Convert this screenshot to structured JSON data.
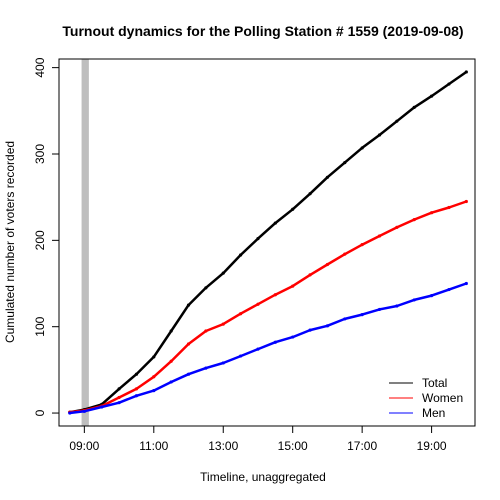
{
  "chart_data": {
    "type": "line",
    "title": "Turnout dynamics for the Polling Station # 1559 (2019-09-08)",
    "xlabel": "Timeline, unaggregated",
    "ylabel": "Cumulated number of voters recorded",
    "xlim": [
      8.27,
      20.25
    ],
    "ylim": [
      -15,
      410
    ],
    "x_ticks": [
      {
        "value": 9,
        "label": "09:00"
      },
      {
        "value": 11,
        "label": "11:00"
      },
      {
        "value": 13,
        "label": "13:00"
      },
      {
        "value": 15,
        "label": "15:00"
      },
      {
        "value": 17,
        "label": "17:00"
      },
      {
        "value": 19,
        "label": "19:00"
      }
    ],
    "y_ticks": [
      {
        "value": 0,
        "label": "0"
      },
      {
        "value": 100,
        "label": "100"
      },
      {
        "value": 200,
        "label": "200"
      },
      {
        "value": 300,
        "label": "300"
      },
      {
        "value": 400,
        "label": "400"
      }
    ],
    "highlight_band": {
      "x_from": 8.92,
      "x_to": 9.13,
      "color": "#bebebe"
    },
    "legend_position": "bottom-right",
    "series": [
      {
        "name": "Total",
        "color": "#000000",
        "x": [
          8.58,
          9.0,
          9.5,
          10.0,
          10.5,
          11.0,
          11.5,
          12.0,
          12.5,
          13.0,
          13.5,
          14.0,
          14.5,
          15.0,
          15.5,
          16.0,
          16.5,
          17.0,
          17.5,
          18.0,
          18.5,
          19.0,
          19.5,
          20.0
        ],
        "values": [
          1,
          4,
          10,
          28,
          45,
          65,
          95,
          125,
          145,
          162,
          183,
          202,
          220,
          236,
          254,
          273,
          290,
          307,
          322,
          338,
          354,
          367,
          381,
          395
        ]
      },
      {
        "name": "Women",
        "color": "#ff0000",
        "x": [
          8.58,
          9.0,
          9.5,
          10.0,
          10.5,
          11.0,
          11.5,
          12.0,
          12.5,
          13.0,
          13.5,
          14.0,
          14.5,
          15.0,
          15.5,
          16.0,
          16.5,
          17.0,
          17.5,
          18.0,
          18.5,
          19.0,
          19.5,
          20.0
        ],
        "values": [
          1,
          3,
          8,
          18,
          28,
          42,
          60,
          80,
          95,
          103,
          115,
          126,
          137,
          147,
          160,
          172,
          184,
          195,
          205,
          215,
          224,
          232,
          238,
          245
        ]
      },
      {
        "name": "Men",
        "color": "#0000ff",
        "x": [
          8.58,
          9.0,
          9.5,
          10.0,
          10.5,
          11.0,
          11.5,
          12.0,
          12.5,
          13.0,
          13.5,
          14.0,
          14.5,
          15.0,
          15.5,
          16.0,
          16.5,
          17.0,
          17.5,
          18.0,
          18.5,
          19.0,
          19.5,
          20.0
        ],
        "values": [
          0,
          2,
          7,
          12,
          20,
          26,
          36,
          45,
          52,
          58,
          66,
          74,
          82,
          88,
          96,
          101,
          109,
          114,
          120,
          124,
          131,
          136,
          143,
          150
        ]
      }
    ]
  }
}
